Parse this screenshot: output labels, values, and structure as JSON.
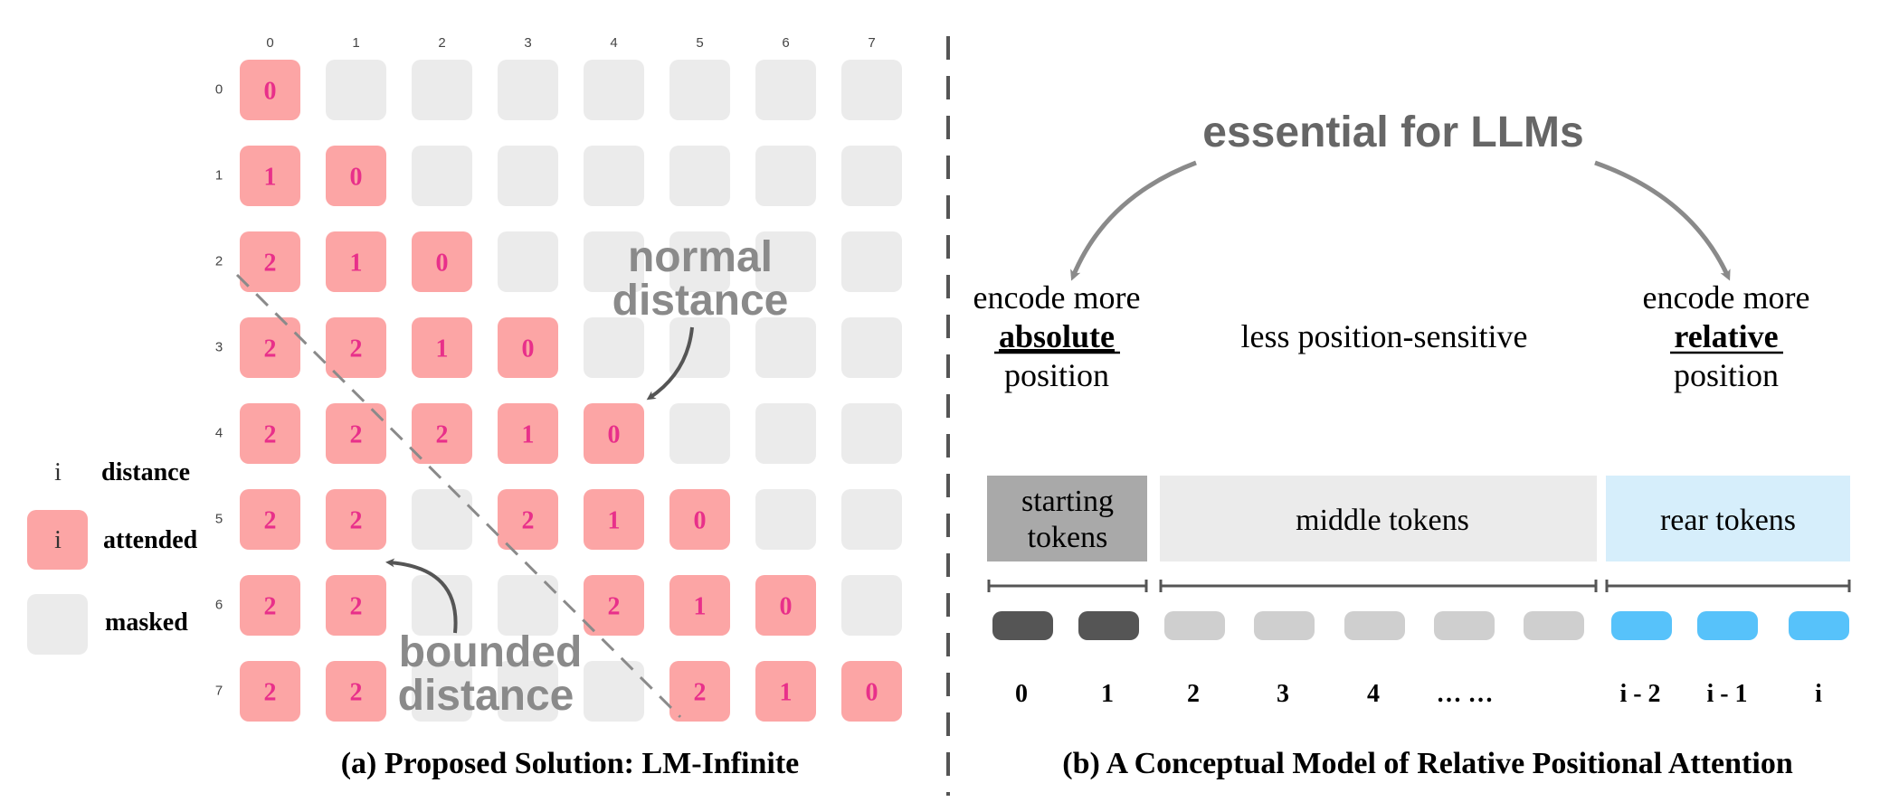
{
  "left_panel": {
    "column_indices": [
      "0",
      "1",
      "2",
      "3",
      "4",
      "5",
      "6",
      "7"
    ],
    "row_indices": [
      "0",
      "1",
      "2",
      "3",
      "4",
      "5",
      "6",
      "7"
    ],
    "matrix": [
      [
        "0",
        null,
        null,
        null,
        null,
        null,
        null,
        null
      ],
      [
        "1",
        "0",
        null,
        null,
        null,
        null,
        null,
        null
      ],
      [
        "2",
        "1",
        "0",
        null,
        null,
        null,
        null,
        null
      ],
      [
        "2",
        "2",
        "1",
        "0",
        null,
        null,
        null,
        null
      ],
      [
        "2",
        "2",
        "2",
        "1",
        "0",
        null,
        null,
        null
      ],
      [
        "2",
        "2",
        null,
        "2",
        "1",
        "0",
        null,
        null
      ],
      [
        "2",
        "2",
        null,
        null,
        "2",
        "1",
        "0",
        null
      ],
      [
        "2",
        "2",
        null,
        null,
        null,
        "2",
        "1",
        "0"
      ]
    ],
    "annotation_normal": [
      "normal",
      "distance"
    ],
    "annotation_bounded": [
      "bounded",
      "distance"
    ],
    "legend": {
      "distance_symbol": "i",
      "distance_label": "distance",
      "attended_symbol": "i",
      "attended_label": "attended",
      "masked_label": "masked"
    },
    "caption": "(a) Proposed Solution: LM-Infinite"
  },
  "right_panel": {
    "top_label": "essential for LLMs",
    "left_text": {
      "line1": "encode more",
      "emph": "absolute",
      "line3": "position"
    },
    "middle_text": "less position-sensitive",
    "right_text": {
      "line1": "encode more",
      "emph": "relative",
      "line3": "position"
    },
    "segments": {
      "starting": [
        "starting",
        "tokens"
      ],
      "middle": "middle tokens",
      "rear": "rear tokens"
    },
    "token_labels": [
      "0",
      "1",
      "2",
      "3",
      "4",
      "… …",
      "i - 2",
      "i - 1",
      "i"
    ],
    "caption": "(b) A Conceptual Model of Relative Positional Attention"
  },
  "colors": {
    "attended_fill": "#fca5a5",
    "attended_text": "#e8308a",
    "masked_fill": "#ebebeb",
    "annotation_gray": "#8a8a8a",
    "starting_fill": "#a9a9a9",
    "middle_fill": "#ebebeb",
    "rear_fill": "#d6eefb",
    "token_dark": "#555555",
    "token_light": "#cfcfcf",
    "token_blue": "#57c2fa"
  }
}
